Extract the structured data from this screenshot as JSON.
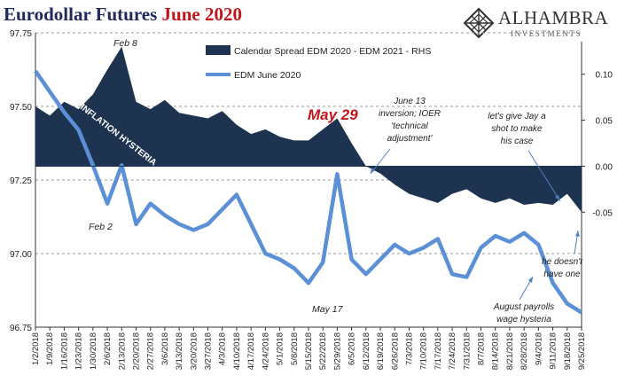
{
  "title": {
    "main": "Eurodollar Futures",
    "highlight": "June 2020"
  },
  "logo": {
    "name": "ALHAMBRA",
    "sub": "INVESTMENTS",
    "icon": "diamond-lattice-icon"
  },
  "chart_data": {
    "type": "line",
    "dates": [
      "1/2/2018",
      "1/9/2018",
      "1/16/2018",
      "1/23/2018",
      "1/30/2018",
      "2/6/2018",
      "2/13/2018",
      "2/20/2018",
      "2/27/2018",
      "3/6/2018",
      "3/13/2018",
      "3/20/2018",
      "3/27/2018",
      "4/3/2018",
      "4/10/2018",
      "4/17/2018",
      "4/24/2018",
      "5/1/2018",
      "5/8/2018",
      "5/15/2018",
      "5/22/2018",
      "5/29/2018",
      "6/5/2018",
      "6/12/2018",
      "6/19/2018",
      "6/26/2018",
      "7/3/2018",
      "7/10/2018",
      "7/17/2018",
      "7/24/2018",
      "7/31/2018",
      "8/7/2018",
      "8/14/2018",
      "8/21/2018",
      "8/28/2018",
      "9/4/2018",
      "9/11/2018",
      "9/18/2018",
      "9/25/2018"
    ],
    "left_axis": {
      "ticks": [
        "96.75",
        "97.00",
        "97.25",
        "97.50",
        "97.75"
      ],
      "ylim": [
        96.75,
        97.75
      ]
    },
    "right_axis": {
      "ticks": [
        "0.10",
        "0.05",
        "0.00",
        "-0.05"
      ],
      "ylim": [
        -0.175,
        0.145
      ]
    },
    "series": [
      {
        "name": "Calendar Spread EDM 2020 - EDM 2021 - RHS",
        "axis": "right",
        "kind": "area",
        "color": "#1e3350",
        "values": [
          0.065,
          0.055,
          0.07,
          0.062,
          0.078,
          0.105,
          0.13,
          0.07,
          0.062,
          0.072,
          0.058,
          0.055,
          0.052,
          0.06,
          0.045,
          0.035,
          0.04,
          0.032,
          0.028,
          0.028,
          0.04,
          0.052,
          0.025,
          0.0,
          -0.008,
          -0.02,
          -0.03,
          -0.035,
          -0.04,
          -0.03,
          -0.025,
          -0.035,
          -0.04,
          -0.035,
          -0.042,
          -0.04,
          -0.042,
          -0.03,
          -0.05
        ]
      },
      {
        "name": "EDM June 2020",
        "axis": "left",
        "kind": "line",
        "color": "#5b8fd6",
        "values": [
          97.62,
          97.55,
          97.48,
          97.42,
          97.3,
          97.17,
          97.3,
          97.1,
          97.17,
          97.13,
          97.1,
          97.08,
          97.1,
          97.15,
          97.2,
          97.1,
          97.0,
          96.98,
          96.95,
          96.9,
          96.97,
          97.27,
          96.98,
          96.93,
          96.98,
          97.03,
          97.0,
          97.02,
          97.05,
          96.93,
          96.92,
          97.02,
          97.06,
          97.04,
          97.07,
          97.03,
          96.9,
          96.83,
          96.8
        ]
      }
    ],
    "annotations": {
      "feb8": "Feb 8",
      "feb2": "Feb 2",
      "may17": "May 17",
      "may29": "May 29",
      "june13": [
        "June 13",
        "inversion; IOER",
        "'technical",
        "adjustment'"
      ],
      "jay": [
        "let's give Jay a",
        "shot to make",
        "his case"
      ],
      "doesnt": [
        "he doesn't",
        "have one"
      ],
      "august": [
        "August payrolls",
        "wage hysteria"
      ],
      "inflation": "INFLATION HYSTERIA"
    },
    "grid": "dashed horizontal",
    "legend_position": "top-center"
  }
}
